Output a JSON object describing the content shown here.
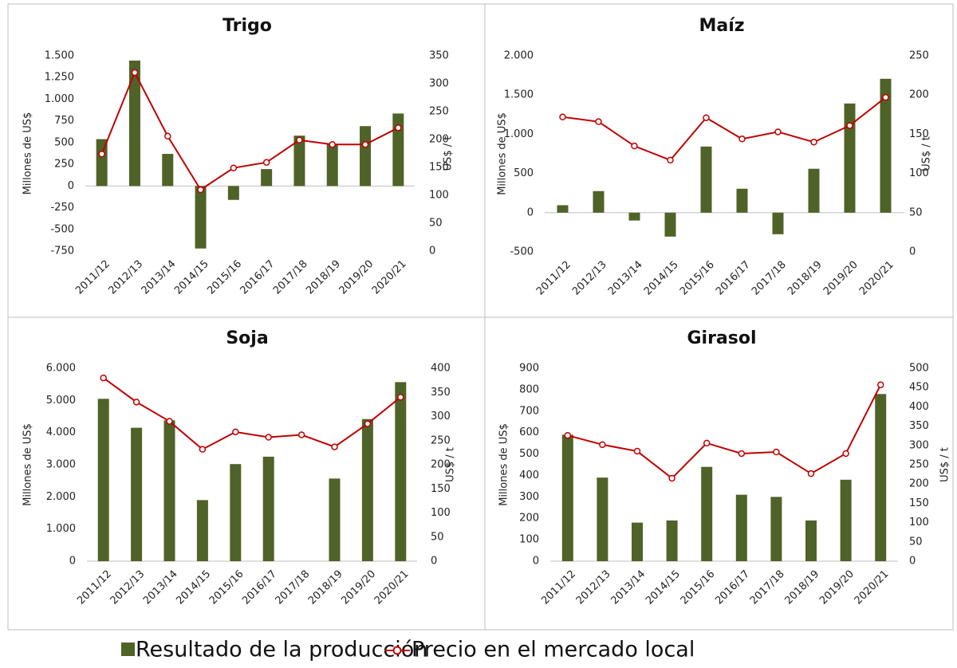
{
  "chart_data": [
    {
      "type": "combo",
      "title": "Trigo",
      "ylabel": "Millones de US$",
      "y2label": "US$ / t",
      "categories": [
        "2011/12",
        "2012/13",
        "2013/14",
        "2014/15",
        "2015/16",
        "2016/17",
        "2017/18",
        "2018/19",
        "2019/20",
        "2020/21"
      ],
      "series": [
        {
          "name": "Resultado de la producción",
          "type": "bar",
          "color": "#4f6228",
          "values": [
            540,
            1445,
            370,
            -720,
            -160,
            195,
            580,
            485,
            690,
            835
          ]
        },
        {
          "name": "Precio en el mercado local",
          "type": "line",
          "axis": "y2",
          "color": "#c00000",
          "values": [
            174,
            320,
            206,
            110,
            149,
            159,
            199,
            191,
            191,
            221
          ]
        }
      ],
      "ylim": [
        -750,
        1500
      ],
      "yticks": [
        -750,
        -500,
        -250,
        0,
        250,
        500,
        750,
        {
          "value": 1000,
          "label": "1.000"
        },
        {
          "value": 1250,
          "label": "1.250"
        },
        {
          "value": 1500,
          "label": "1.500"
        }
      ],
      "y2lim": [
        0,
        350
      ],
      "y2ticks": [
        0,
        50,
        100,
        150,
        200,
        250,
        300,
        350
      ]
    },
    {
      "type": "combo",
      "title": "Maíz",
      "ylabel": "Millones de US$",
      "y2label": "US$ / t",
      "categories": [
        "2011/12",
        "2012/13",
        "2013/14",
        "2014/15",
        "2015/16",
        "2016/17",
        "2017/18",
        "2018/19",
        "2019/20",
        "2020/21"
      ],
      "series": [
        {
          "type": "bar",
          "color": "#4f6228",
          "values": [
            95,
            275,
            -100,
            -305,
            843,
            305,
            -275,
            560,
            1392,
            1707
          ]
        },
        {
          "type": "line",
          "axis": "y2",
          "color": "#c00000",
          "values": [
            172,
            166,
            135,
            117,
            171,
            144,
            153,
            140,
            161,
            197
          ]
        }
      ],
      "ylim": [
        -500,
        2000
      ],
      "yticks": [
        -500,
        0,
        500,
        {
          "value": 1000,
          "label": "1.000"
        },
        {
          "value": 1500,
          "label": "1.500"
        },
        {
          "value": 2000,
          "label": "2.000"
        }
      ],
      "y2lim": [
        0,
        250
      ],
      "y2ticks": [
        0,
        50,
        100,
        150,
        200,
        250
      ]
    },
    {
      "type": "combo",
      "title": "Soja",
      "ylabel": "Millones de US$",
      "y2label": "US$ / t",
      "categories": [
        "2011/12",
        "2012/13",
        "2013/14",
        "2014/15",
        "2015/16",
        "2016/17",
        "2017/18",
        "2018/19",
        "2019/20",
        "2020/21"
      ],
      "series": [
        {
          "type": "bar",
          "color": "#4f6228",
          "values": [
            5050,
            4150,
            4380,
            1900,
            3020,
            3250,
            null,
            2570,
            4420,
            5570
          ]
        },
        {
          "type": "line",
          "axis": "y2",
          "color": "#c00000",
          "values": [
            380,
            330,
            290,
            232,
            268,
            257,
            262,
            237,
            285,
            340
          ]
        }
      ],
      "ylim": [
        0,
        6000
      ],
      "yticks": [
        0,
        {
          "value": 1000,
          "label": "1.000"
        },
        {
          "value": 2000,
          "label": "2.000"
        },
        {
          "value": 3000,
          "label": "3.000"
        },
        {
          "value": 4000,
          "label": "4.000"
        },
        {
          "value": 5000,
          "label": "5.000"
        },
        {
          "value": 6000,
          "label": "6.000"
        }
      ],
      "y2lim": [
        0,
        400
      ],
      "y2ticks": [
        0,
        50,
        100,
        150,
        200,
        250,
        300,
        350,
        400
      ]
    },
    {
      "type": "combo",
      "title": "Girasol",
      "ylabel": "Millones de US$",
      "y2label": "US$ / t",
      "categories": [
        "2011/12",
        "2012/13",
        "2013/14",
        "2014/15",
        "2015/16",
        "2016/17",
        "2017/18",
        "2018/19",
        "2019/20",
        "2020/21"
      ],
      "series": [
        {
          "type": "bar",
          "color": "#4f6228",
          "values": [
            590,
            390,
            180,
            190,
            440,
            310,
            300,
            190,
            380,
            780
          ]
        },
        {
          "type": "line",
          "axis": "y2",
          "color": "#c00000",
          "values": [
            326,
            302,
            285,
            215,
            306,
            279,
            283,
            227,
            279,
            457
          ]
        }
      ],
      "ylim": [
        0,
        900
      ],
      "yticks": [
        0,
        100,
        200,
        300,
        400,
        500,
        600,
        700,
        800,
        900
      ],
      "y2lim": [
        0,
        500
      ],
      "y2ticks": [
        0,
        50,
        100,
        150,
        200,
        250,
        300,
        350,
        400,
        450,
        500
      ]
    }
  ]
}
